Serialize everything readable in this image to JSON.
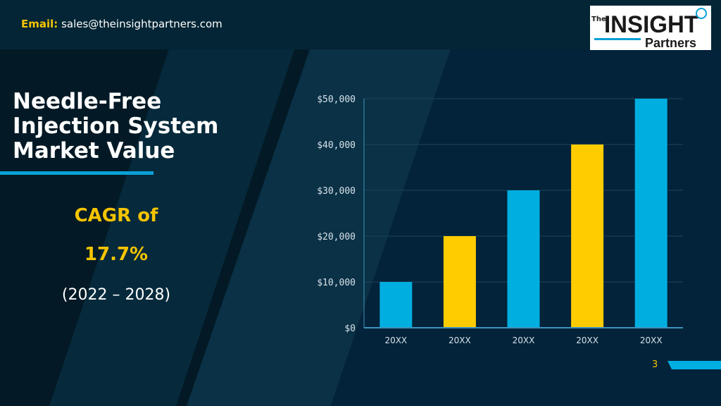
{
  "header": {
    "email_label": "Email:",
    "email_value": "sales@theinsightpartners.com",
    "logo": {
      "the": "The",
      "insight": "INSIGHT",
      "partners": "Partners"
    }
  },
  "slide": {
    "title_lines": [
      "Needle-Free",
      "Injection System",
      "Market Value"
    ],
    "cagr_label": "CAGR of",
    "cagr_value": "17.7%",
    "period": "(2022 – 2028)",
    "page_number": "3"
  },
  "colors": {
    "background": "#031a26",
    "accent_blue": "#0aa0d6",
    "accent_yellow": "#f5c400",
    "bar_blue": "#00aee0",
    "bar_yellow": "#ffcc00"
  },
  "chart_data": {
    "type": "bar",
    "categories": [
      "20XX",
      "20XX",
      "20XX",
      "20XX",
      "20XX"
    ],
    "values": [
      10000,
      20000,
      30000,
      40000,
      50000
    ],
    "bar_colors": [
      "#00aee0",
      "#ffcc00",
      "#00aee0",
      "#ffcc00",
      "#00aee0"
    ],
    "yticks": [
      "$0",
      "$10,000",
      "$20,000",
      "$30,000",
      "$40,000",
      "$50,000"
    ],
    "ylim": [
      0,
      50000
    ],
    "grid": true
  }
}
